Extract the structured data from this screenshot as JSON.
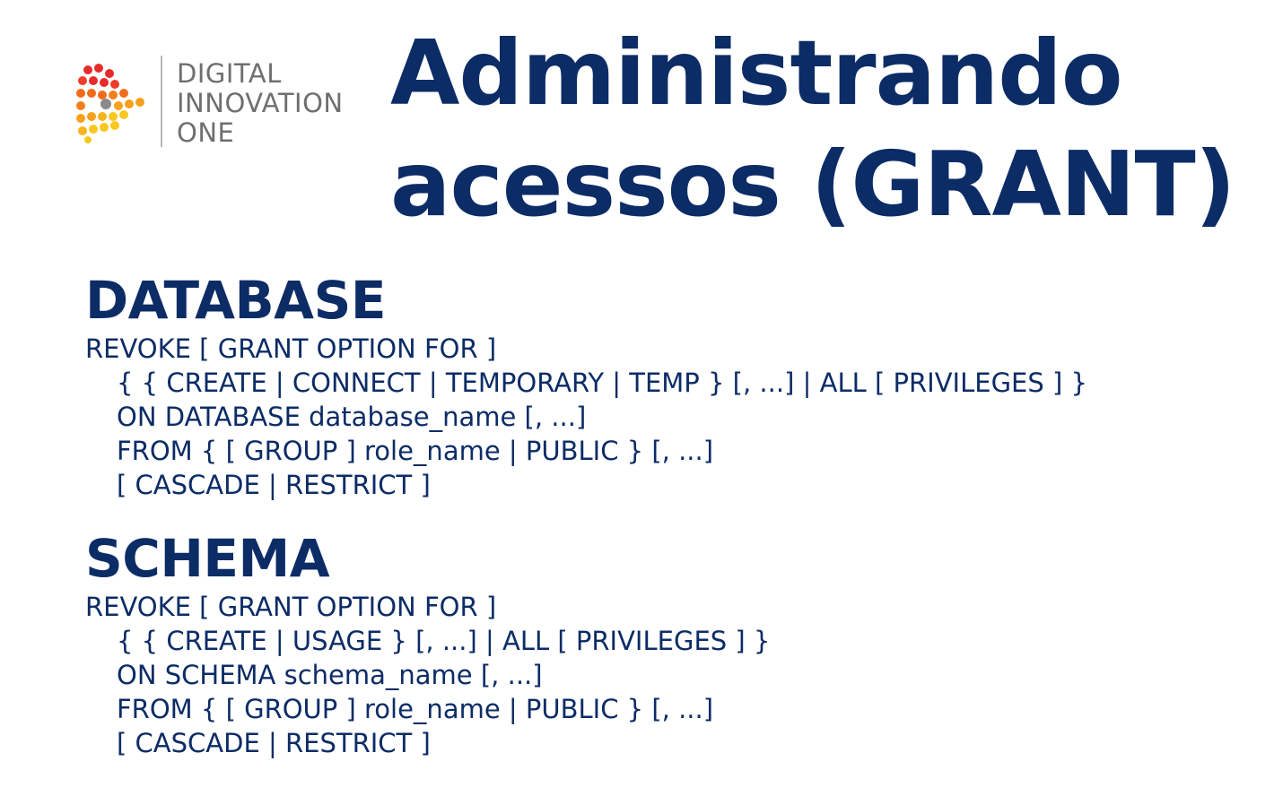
{
  "logo": {
    "line1": "DIGITAL",
    "line2": "INNOVATION",
    "line3": "ONE",
    "colors": [
      "#e62b2b",
      "#f26a1b",
      "#f6a11a",
      "#f8c81e"
    ]
  },
  "title": {
    "line1": "Administrando",
    "line2": "acessos (GRANT)"
  },
  "sections": [
    {
      "heading": "DATABASE",
      "lines": [
        "REVOKE [ GRANT OPTION FOR ]",
        "{ { CREATE  |  CONNECT  |  TEMPORARY  |  TEMP } [, ...]  |  ALL [ PRIVILEGES ] }",
        "ON DATABASE database_name [, ...]",
        "FROM { [ GROUP ] role_name  |  PUBLIC } [, ...]",
        "[ CASCADE  |  RESTRICT ]"
      ]
    },
    {
      "heading": "SCHEMA",
      "lines": [
        "REVOKE [ GRANT OPTION FOR ]",
        "{ { CREATE  |  USAGE } [, ...]  |  ALL [ PRIVILEGES ] }",
        "ON SCHEMA schema_name [, ...]",
        "FROM { [ GROUP ] role_name  |  PUBLIC } [, ...]",
        "[ CASCADE  |  RESTRICT ]"
      ]
    }
  ],
  "colors": {
    "heading": "#0c2c66",
    "logo_text": "#6f6f6f"
  }
}
